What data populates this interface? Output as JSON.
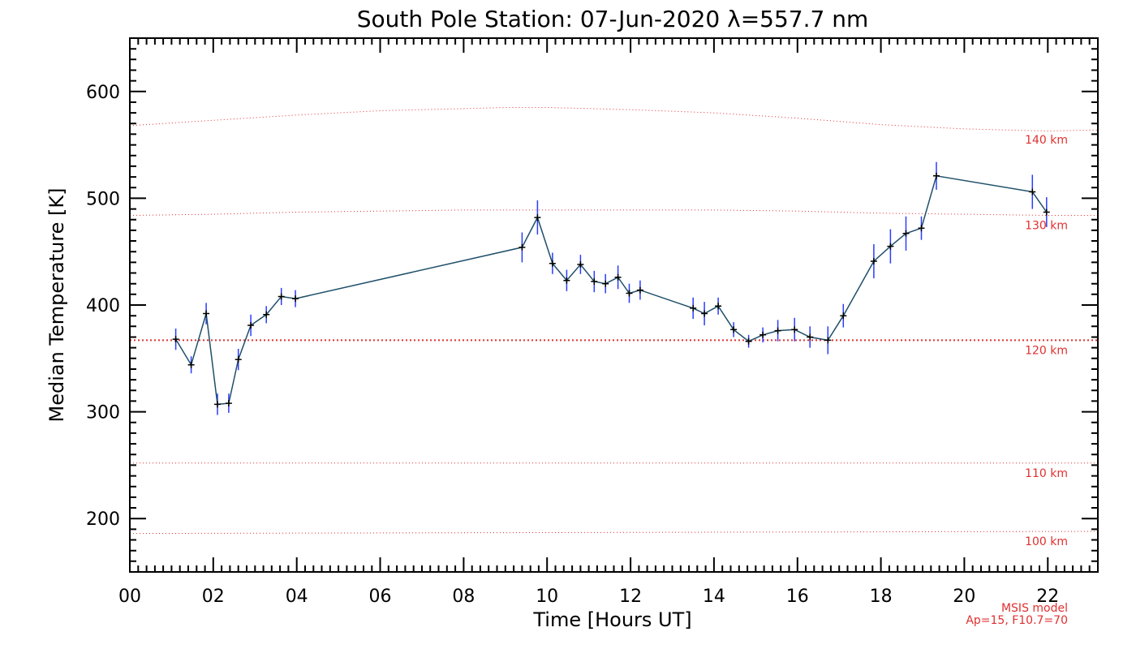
{
  "chart_data": {
    "type": "line",
    "title": "South Pole Station: 07-Jun-2020 λ=557.7 nm",
    "xlabel": "Time [Hours UT]",
    "ylabel": "Median Temperature [K]",
    "xlim": [
      0,
      23.2
    ],
    "ylim": [
      150,
      650
    ],
    "x_tick_labels": [
      "00",
      "02",
      "04",
      "06",
      "08",
      "10",
      "12",
      "14",
      "16",
      "18",
      "20",
      "22"
    ],
    "x_ticks": [
      0,
      2,
      4,
      6,
      8,
      10,
      12,
      14,
      16,
      18,
      20,
      22
    ],
    "y_ticks": [
      200,
      300,
      400,
      500,
      600
    ],
    "y_tick_labels": [
      "200",
      "300",
      "400",
      "500",
      "600"
    ],
    "grid": false,
    "series": [
      {
        "color": "#1f4f6a",
        "errorbar_color": "#2a3cff",
        "x": [
          1.1,
          1.47,
          1.83,
          2.1,
          2.37,
          2.6,
          2.9,
          3.27,
          3.63,
          3.97,
          9.4,
          9.77,
          10.13,
          10.47,
          10.8,
          11.13,
          11.4,
          11.7,
          11.97,
          12.23,
          13.5,
          13.77,
          14.1,
          14.47,
          14.83,
          15.17,
          15.53,
          15.93,
          16.3,
          16.73,
          17.1,
          17.83,
          18.23,
          18.6,
          18.97,
          19.33,
          21.63,
          21.97
        ],
        "y": [
          368,
          344,
          392,
          307,
          308,
          349,
          381,
          391,
          408,
          406,
          454,
          482,
          439,
          423,
          438,
          422,
          420,
          426,
          411,
          414,
          397,
          392,
          399,
          377,
          366,
          372,
          376,
          377,
          370,
          367,
          390,
          441,
          455,
          467,
          472,
          521,
          506,
          487
        ],
        "errors": [
          10,
          8,
          10,
          10,
          9,
          10,
          10,
          8,
          8,
          8,
          14,
          16,
          10,
          10,
          9,
          10,
          9,
          11,
          9,
          9,
          10,
          11,
          8,
          7,
          6,
          7,
          10,
          11,
          10,
          13,
          11,
          16,
          16,
          16,
          11,
          13,
          16,
          14
        ]
      }
    ],
    "reference_lines": [
      {
        "label": "100 km",
        "x": [
          0,
          23.2
        ],
        "y": [
          186,
          188
        ],
        "color": "#e03030",
        "style": "dotted"
      },
      {
        "label": "110 km",
        "x": [
          0,
          23.2
        ],
        "y": [
          252,
          252
        ],
        "color": "#e03030",
        "style": "dotted"
      },
      {
        "label": "120 km",
        "x": [
          0,
          23.2
        ],
        "y": [
          367,
          367
        ],
        "color": "#e03030",
        "style": "dotted-thick"
      },
      {
        "label": "130 km",
        "x": [
          0,
          2,
          4,
          6,
          8,
          10,
          12,
          14,
          16,
          18,
          20,
          22,
          23.2
        ],
        "y": [
          484,
          485,
          487,
          488,
          489,
          489,
          489,
          489,
          488,
          486,
          485,
          484,
          484
        ],
        "color": "#e03030",
        "style": "dotted"
      },
      {
        "label": "140 km",
        "x": [
          0,
          2,
          4,
          6,
          8,
          9,
          10,
          12,
          14,
          16,
          18,
          20,
          22,
          23.2
        ],
        "y": [
          568,
          573,
          578,
          582,
          584,
          585,
          585,
          583,
          580,
          575,
          569,
          565,
          563,
          564
        ],
        "color": "#e03030",
        "style": "dotted"
      }
    ],
    "annotations": [
      "MSIS model",
      "Ap=15, F10.7=70"
    ]
  }
}
